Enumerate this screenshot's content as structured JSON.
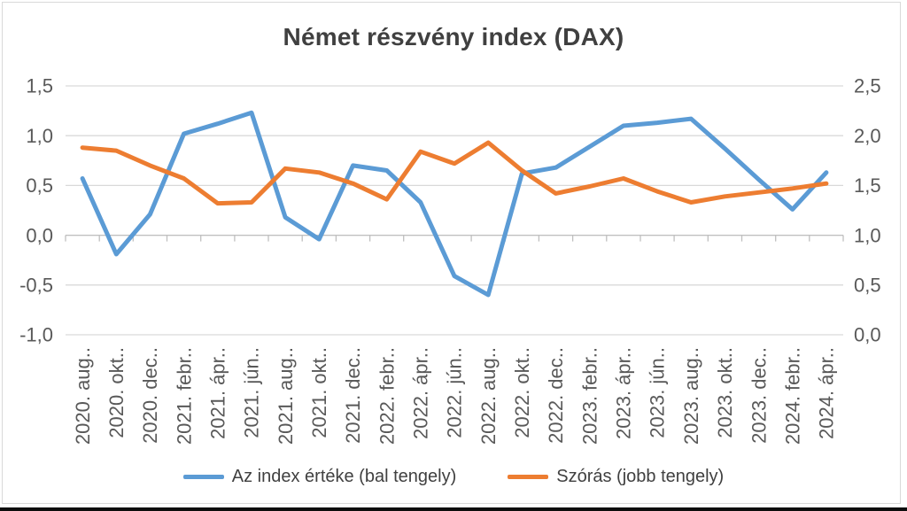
{
  "chart_data": {
    "type": "line",
    "title": "Német részvény index (DAX)",
    "categories": [
      "2020. aug..",
      "2020. okt..",
      "2020. dec..",
      "2021. febr..",
      "2021. ápr..",
      "2021. jún..",
      "2021. aug..",
      "2021. okt..",
      "2021. dec..",
      "2022. febr..",
      "2022. ápr..",
      "2022. jún..",
      "2022. aug..",
      "2022. okt..",
      "2022. dec..",
      "2023. febr..",
      "2023. ápr..",
      "2023. jún..",
      "2023. aug..",
      "2023. okt..",
      "2023. dec..",
      "2024. febr..",
      "2024. ápr.."
    ],
    "series": [
      {
        "name": "Az index értéke (bal tengely)",
        "axis": "left",
        "color": "#5B9BD5",
        "values": [
          0.57,
          -0.19,
          0.21,
          1.02,
          1.12,
          1.23,
          0.18,
          -0.04,
          0.7,
          0.65,
          0.33,
          -0.41,
          -0.6,
          0.62,
          0.68,
          0.89,
          1.1,
          1.13,
          1.17,
          0.87,
          0.56,
          0.26,
          0.63
        ]
      },
      {
        "name": "Szórás (jobb tengely)",
        "axis": "right",
        "color": "#ED7D31",
        "values": [
          1.88,
          1.85,
          1.7,
          1.57,
          1.32,
          1.33,
          1.67,
          1.63,
          1.52,
          1.36,
          1.84,
          1.72,
          1.93,
          1.65,
          1.42,
          1.49,
          1.57,
          1.44,
          1.33,
          1.39,
          1.43,
          1.47,
          1.52
        ]
      }
    ],
    "left_axis": {
      "range": [
        -1.0,
        1.5
      ],
      "tick_labels": [
        "1,5",
        "1,0",
        "0,5",
        "0,0",
        "-0,5",
        "-1,0"
      ],
      "tick_values": [
        1.5,
        1.0,
        0.5,
        0.0,
        -0.5,
        -1.0
      ]
    },
    "right_axis": {
      "range": [
        0.0,
        2.5
      ],
      "tick_labels": [
        "2,5",
        "2,0",
        "1,5",
        "1,0",
        "0,5",
        "0,0"
      ],
      "tick_values": [
        2.5,
        2.0,
        1.5,
        1.0,
        0.5,
        0.0
      ]
    },
    "grid": true,
    "legend_position": "bottom",
    "colors": {
      "title_text": "#404040",
      "axis_text": "#595959",
      "legend_text": "#404040",
      "grid": "#d9d9d9",
      "axis_line": "#bfbfbf",
      "frame_border": "#d9d9d9",
      "bottom_bar": "#0d0d0d",
      "background": "#ffffff"
    }
  }
}
